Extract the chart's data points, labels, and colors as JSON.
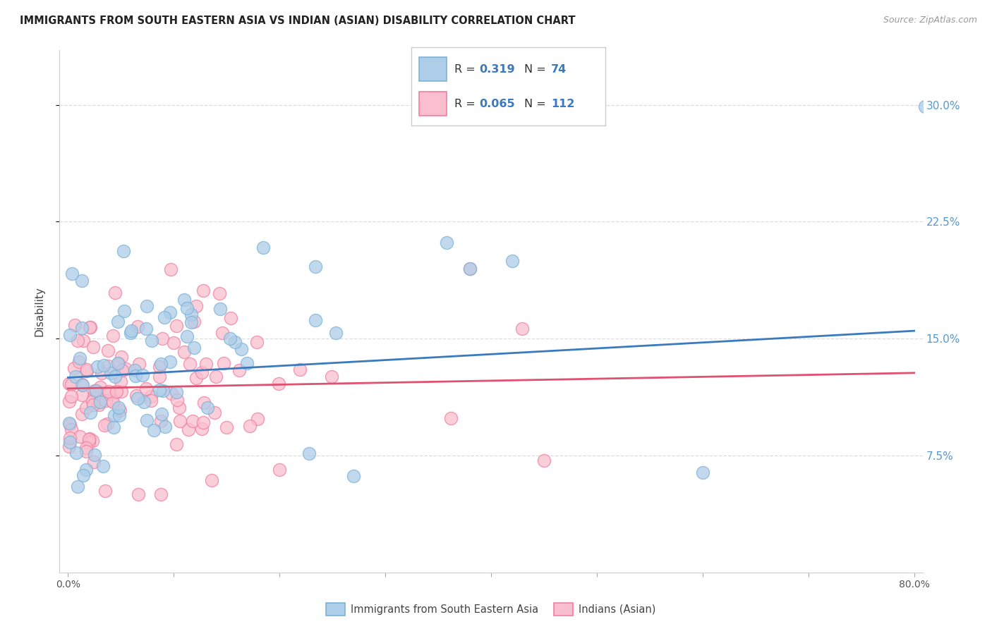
{
  "title": "IMMIGRANTS FROM SOUTH EASTERN ASIA VS INDIAN (ASIAN) DISABILITY CORRELATION CHART",
  "source": "Source: ZipAtlas.com",
  "ylabel": "Disability",
  "series1_color_edge": "#7ab3d9",
  "series1_color_fill": "#aecde8",
  "series2_color_edge": "#f07fa0",
  "series2_color_fill": "#f9bfce",
  "line1_color": "#3a7abf",
  "line2_color": "#e05070",
  "R1": 0.319,
  "N1": 74,
  "R2": 0.065,
  "N2": 112,
  "legend1": "Immigrants from South Eastern Asia",
  "legend2": "Indians (Asian)",
  "background_color": "#ffffff",
  "grid_color": "#dddddd",
  "ytick_color": "#5599cc",
  "title_color": "#222222",
  "source_color": "#999999"
}
